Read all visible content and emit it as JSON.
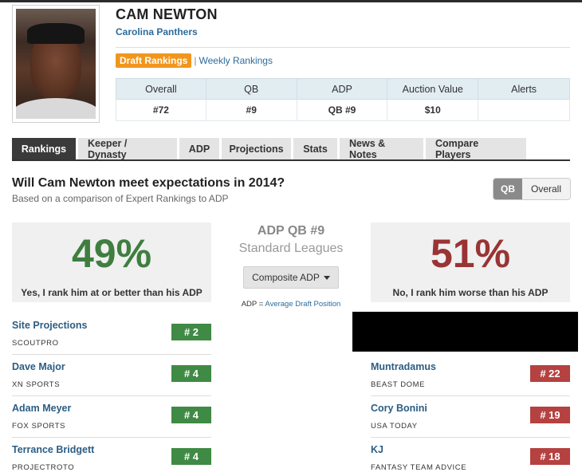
{
  "player": {
    "name": "CAM NEWTON",
    "team": "Carolina Panthers"
  },
  "rank_links": {
    "draft": "Draft Rankings",
    "separator": "|",
    "weekly": "Weekly Rankings"
  },
  "stats": {
    "headers": [
      "Overall",
      "QB",
      "ADP",
      "Auction Value",
      "Alerts"
    ],
    "values": [
      "#72",
      "#9",
      "QB #9",
      "$10",
      ""
    ]
  },
  "tabs": [
    "Rankings",
    "Keeper / Dynasty",
    "ADP",
    "Projections",
    "Stats",
    "News & Notes",
    "Compare Players"
  ],
  "question": {
    "title": "Will Cam Newton meet expectations in 2014?",
    "subtitle": "Based on a comparison of Expert Rankings to ADP"
  },
  "toggle": {
    "qb": "QB",
    "overall": "Overall"
  },
  "yes_box": {
    "percent": "49%",
    "label": "Yes, I rank him at or better than his ADP"
  },
  "no_box": {
    "percent": "51%",
    "label": "No, I rank him worse than his ADP"
  },
  "center": {
    "adp_title": "ADP QB #9",
    "leagues": "Standard Leagues",
    "composite_btn": "Composite ADP",
    "adp_prefix": "ADP =",
    "adp_link": "Average Draft Position"
  },
  "experts_yes": [
    {
      "name": "Site Projections",
      "source": "SCOUTPRO",
      "rank": "# 2"
    },
    {
      "name": "Dave Major",
      "source": "XN SPORTS",
      "rank": "# 4"
    },
    {
      "name": "Adam Meyer",
      "source": "FOX SPORTS",
      "rank": "# 4"
    },
    {
      "name": "Terrance Bridgett",
      "source": "PROJECTROTO",
      "rank": "# 4"
    }
  ],
  "experts_no": [
    {
      "name": "Muntradamus",
      "source": "BEAST DOME",
      "rank": "# 22"
    },
    {
      "name": "Cory Bonini",
      "source": "USA TODAY",
      "rank": "# 19"
    },
    {
      "name": "KJ",
      "source": "FANTASY TEAM ADVICE",
      "rank": "# 18"
    }
  ],
  "colors": {
    "accent_orange": "#f0961e",
    "link_blue": "#2c6c9c",
    "yes_green": "#3f7e3f",
    "no_red": "#9a3434"
  }
}
